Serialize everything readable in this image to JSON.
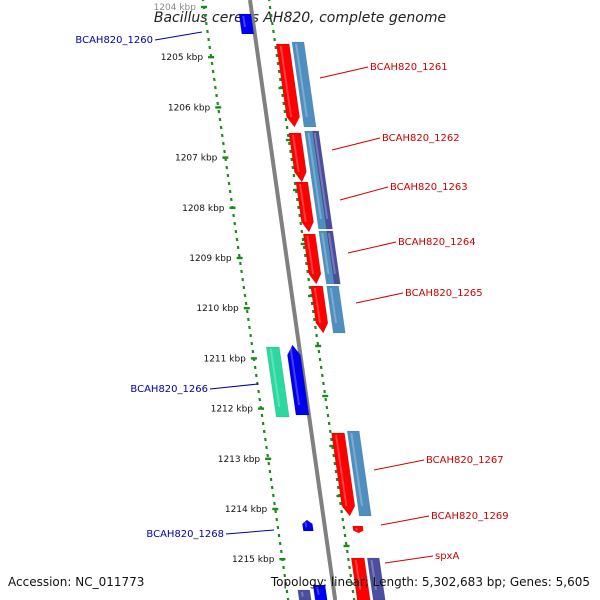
{
  "title": "Bacillus cereus AH820, complete genome",
  "accession": "Accession: NC_011773",
  "summary": "Topology: linear; Length: 5,302,683 bp; Genes: 5,605",
  "ticks": [
    "1204 kbp",
    "1205 kbp",
    "1206 kbp",
    "1207 kbp",
    "1208 kbp",
    "1209 kbp",
    "1210 kbp",
    "1211 kbp",
    "1212 kbp",
    "1213 kbp",
    "1214 kbp",
    "1215 kbp"
  ],
  "right_labels": [
    "BCAH820_1261",
    "BCAH820_1262",
    "BCAH820_1263",
    "BCAH820_1264",
    "BCAH820_1265",
    "BCAH820_1267",
    "BCAH820_1269",
    "spxA"
  ],
  "left_labels": [
    "BCAH820_1260",
    "BCAH820_1266",
    "BCAH820_1268"
  ],
  "colors": {
    "forward_gene": "#ff0000",
    "reverse_gene": "#0000ee",
    "cds_steel": "#4f8fc0",
    "cds_violet": "#4b4e9e",
    "rna_mint": "#2bd9a0",
    "backbone": "#808080",
    "dotted_track": "#1a8a1a",
    "right_label_text": "#cc0000",
    "left_label_text": "#0000aa"
  }
}
